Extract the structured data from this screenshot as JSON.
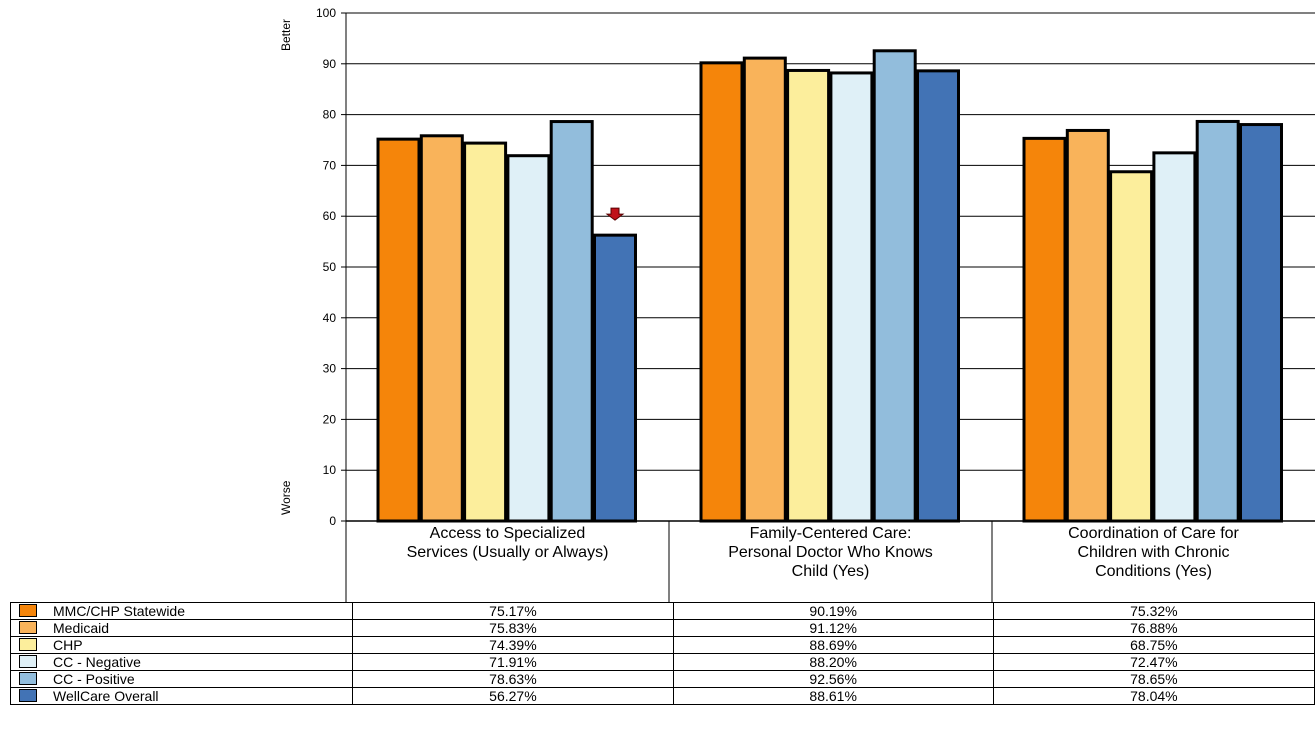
{
  "chart_data": {
    "type": "bar",
    "categories": [
      [
        "Access to Specialized",
        "Services (Usually or Always)"
      ],
      [
        "Family-Centered Care:",
        "Personal Doctor Who Knows",
        "Child (Yes)"
      ],
      [
        "Coordination of Care for",
        "Children with Chronic",
        "Conditions (Yes)"
      ]
    ],
    "series": [
      {
        "name": "MMC/CHP Statewide",
        "color": "#f5850a",
        "values": [
          75.17,
          90.19,
          75.32
        ],
        "labels": [
          "75.17%",
          "90.19%",
          "75.32%"
        ]
      },
      {
        "name": "Medicaid",
        "color": "#f9b35a",
        "values": [
          75.83,
          91.12,
          76.88
        ],
        "labels": [
          "75.83%",
          "91.12%",
          "76.88%"
        ]
      },
      {
        "name": "CHP",
        "color": "#fcee9c",
        "values": [
          74.39,
          88.69,
          68.75
        ],
        "labels": [
          "74.39%",
          "88.69%",
          "68.75%"
        ]
      },
      {
        "name": "CC - Negative",
        "color": "#dff0f7",
        "values": [
          71.91,
          88.2,
          72.47
        ],
        "labels": [
          "71.91%",
          "88.20%",
          "72.47%"
        ]
      },
      {
        "name": "CC - Positive",
        "color": "#92bddc",
        "values": [
          78.63,
          92.56,
          78.65
        ],
        "labels": [
          "78.63%",
          "92.56%",
          "78.65%"
        ]
      },
      {
        "name": "WellCare Overall",
        "color": "#4273b5",
        "values": [
          56.27,
          88.61,
          78.04
        ],
        "labels": [
          "56.27%",
          "88.61%",
          "78.04%"
        ]
      }
    ],
    "ylim": [
      0,
      100
    ],
    "yticks": [
      0,
      10,
      20,
      30,
      40,
      50,
      60,
      70,
      80,
      90,
      100
    ],
    "y_top_label": "Better",
    "y_bottom_label": "Worse",
    "grid": true,
    "annotations": [
      {
        "type": "down-arrow-marker",
        "series": "WellCare Overall",
        "category_index": 0,
        "color": "#c0121a"
      }
    ]
  }
}
